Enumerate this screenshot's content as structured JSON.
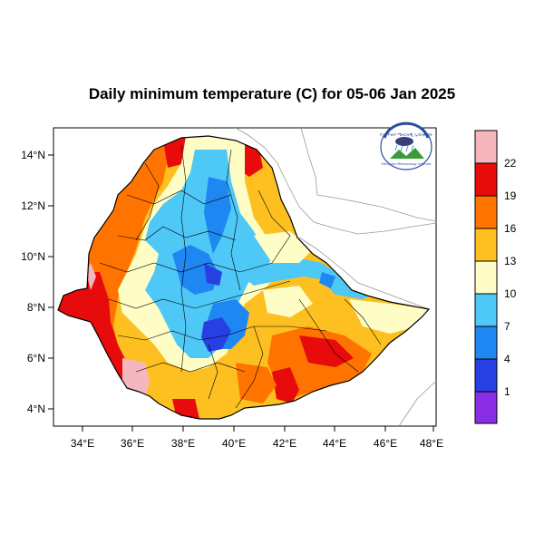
{
  "title": "Daily minimum temperature (C) for 05-06 Jan 2025",
  "map": {
    "region": "Ethiopia",
    "lon_range": [
      33,
      48.2
    ],
    "lat_range": [
      3.3,
      15.0
    ],
    "x_ticks": [
      "34°E",
      "36°E",
      "38°E",
      "40°E",
      "42°E",
      "44°E",
      "46°E",
      "48°E"
    ],
    "y_ticks": [
      "14°N",
      "12°N",
      "10°N",
      "8°N",
      "6°N",
      "4°N"
    ]
  },
  "legend": {
    "labels": [
      "22",
      "19",
      "16",
      "13",
      "10",
      "7",
      "4",
      "1"
    ],
    "colors": [
      "#f6b6bd",
      "#e80b0b",
      "#ff7400",
      "#fdc020",
      "#fffdc6",
      "#4ec8f7",
      "#1f87f2",
      "#2640e3",
      "#8a2ee6"
    ]
  },
  "logo": {
    "agency_amharic": "የኢትዮጵያ ሜትሮሎጂ ኢንስቲትዩት",
    "agency_english": "Ethiopian Meteorology Institute"
  }
}
